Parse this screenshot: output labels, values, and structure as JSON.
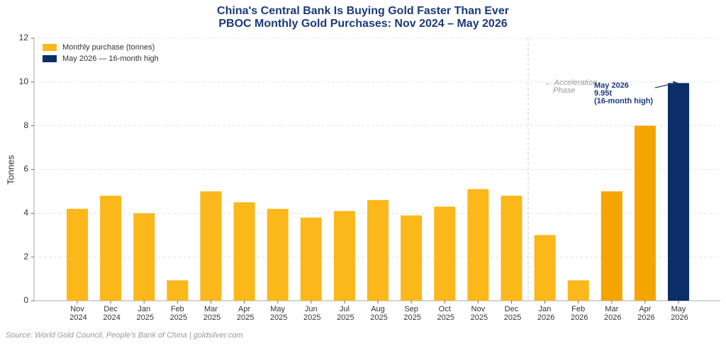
{
  "chart_data": {
    "type": "bar",
    "title": "China's Central Bank Is Buying Gold Faster Than Ever",
    "subtitle": "PBOC Monthly Gold Purchases: Nov 2024 – May 2026",
    "y_label": "Tonnes",
    "categories": [
      "Nov 2024",
      "Dec 2024",
      "Jan 2025",
      "Feb 2025",
      "Mar 2025",
      "Apr 2025",
      "May 2025",
      "Jun 2025",
      "Jul 2025",
      "Aug 2025",
      "Sep 2025",
      "Oct 2025",
      "Nov 2025",
      "Dec 2025",
      "Jan 2026",
      "Feb 2026",
      "Mar 2026",
      "Apr 2026",
      "May 2026"
    ],
    "values": [
      4.2,
      4.8,
      4.0,
      0.93,
      5.0,
      4.5,
      4.2,
      3.8,
      4.1,
      4.6,
      3.9,
      4.3,
      5.1,
      4.8,
      3.0,
      0.93,
      5.0,
      8.0,
      9.95
    ],
    "colors": [
      "#fbb81b",
      "#fbb81b",
      "#fbb81b",
      "#fbb81b",
      "#fbb81b",
      "#fbb81b",
      "#fbb81b",
      "#fbb81b",
      "#fbb81b",
      "#fbb81b",
      "#fbb81b",
      "#fbb81b",
      "#fbb81b",
      "#fbb81b",
      "#fbb81b",
      "#fbb81b",
      "#f5a502",
      "#f5a502",
      "#0b2d68"
    ],
    "ylim": [
      0,
      12
    ],
    "yticks": [
      0,
      2,
      4,
      6,
      8,
      10,
      12
    ],
    "grid": true,
    "legend": {
      "position": "upper-left",
      "items": [
        {
          "name": "Monthly purchase (tonnes)",
          "color": "#fbb81b"
        },
        {
          "name": "May 2026 — 16-month high",
          "color": "#0b2d68"
        }
      ]
    },
    "annotations": {
      "phase": [
        "← Acceleration",
        "Phase"
      ],
      "peak": [
        "May 2026",
        "9.95t",
        "(16-month high)"
      ]
    },
    "source": "Source: World Gold Council, People's Bank of China | goldsilver.com"
  }
}
